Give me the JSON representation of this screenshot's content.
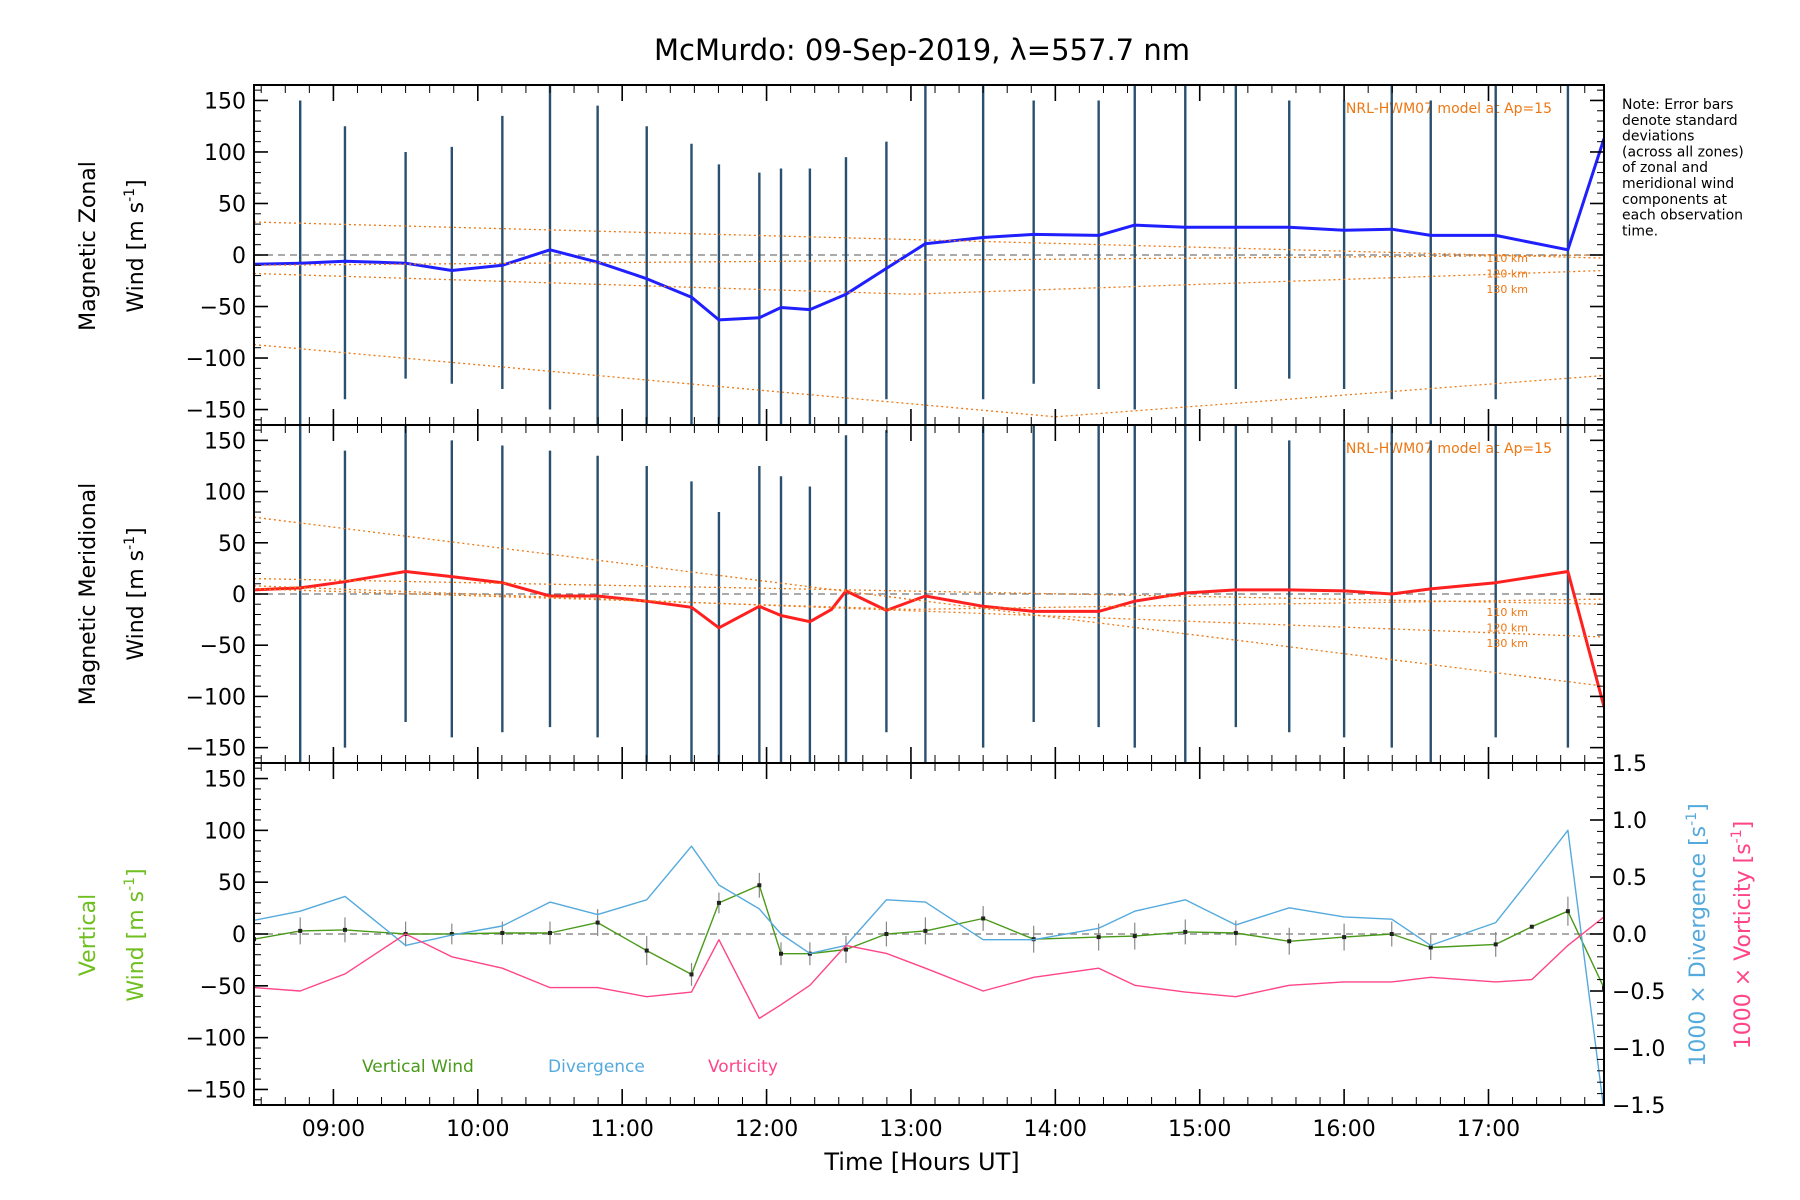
{
  "title": "McMurdo: 09-Sep-2019, λ=557.7 nm",
  "note_lines": [
    "Note: Error bars",
    "denote standard",
    "deviations",
    "(across all zones)",
    "of zonal and",
    "meridional wind",
    "components at",
    "each observation",
    "time."
  ],
  "colors": {
    "zonal": "#2020ff",
    "meridional": "#ff2020",
    "vertical": "#4a9a1a",
    "divergence": "#55aadd",
    "vorticity": "#ff4488",
    "model": "#ee7711",
    "errorbar": "#2a5070",
    "vertical_label": "#6fbf1f"
  },
  "chart_data": [
    {
      "type": "line",
      "panel": "zonal",
      "ylabel_line1": "Magnetic Zonal",
      "ylabel_line2": "Wind [m s",
      "ylabel_sup": "-1",
      "ylabel_close": "]",
      "xlim": [
        8.45,
        17.8
      ],
      "ylim": [
        -165,
        165
      ],
      "yticks": [
        150,
        100,
        50,
        0,
        -50,
        -100,
        -150
      ],
      "model_label": "NRL-HWM07 model at Ap=15",
      "altitude_labels": [
        "110 km",
        "120 km",
        "130 km"
      ],
      "series": [
        {
          "name": "Zonal wind",
          "x": [
            8.45,
            8.77,
            9.08,
            9.5,
            9.82,
            10.17,
            10.5,
            10.83,
            11.17,
            11.48,
            11.67,
            11.95,
            12.1,
            12.3,
            12.55,
            12.83,
            13.1,
            13.5,
            13.85,
            14.3,
            14.55,
            14.9,
            15.25,
            15.62,
            16.0,
            16.33,
            16.6,
            17.05,
            17.55,
            17.8
          ],
          "y": [
            -9,
            -8,
            -6,
            -8,
            -15,
            -10,
            5,
            -7,
            -23,
            -41,
            -63,
            -61,
            -51,
            -53,
            -38,
            -13,
            11,
            17,
            20,
            19,
            29,
            27,
            27,
            27,
            24,
            25,
            19,
            19,
            5,
            113
          ]
        },
        {
          "name": "Model 110 km",
          "style": "dotted",
          "x": [
            8.45,
            17.8
          ],
          "y": [
            -10,
            0
          ]
        },
        {
          "name": "Model 120 km",
          "style": "dotted",
          "x": [
            8.45,
            13.0,
            17.8
          ],
          "y": [
            -18,
            -38,
            -15
          ]
        },
        {
          "name": "Model 130 km",
          "style": "dotted",
          "x": [
            8.45,
            14.0,
            17.8
          ],
          "y": [
            -87,
            -157,
            -117
          ]
        },
        {
          "name": "Model upper",
          "style": "dotted",
          "x": [
            8.45,
            17.8
          ],
          "y": [
            32,
            -3
          ]
        }
      ],
      "errorbars": {
        "x": [
          8.77,
          9.08,
          9.5,
          9.82,
          10.17,
          10.5,
          10.83,
          11.17,
          11.48,
          11.67,
          11.95,
          12.1,
          12.3,
          12.55,
          12.83,
          13.1,
          13.5,
          13.85,
          14.3,
          14.55,
          14.9,
          15.25,
          15.62,
          16.0,
          16.33,
          16.6,
          17.05,
          17.55
        ],
        "low": [
          -165,
          -140,
          -120,
          -125,
          -130,
          -150,
          -165,
          -165,
          -165,
          -165,
          -165,
          -165,
          -165,
          -165,
          -140,
          -165,
          -140,
          -125,
          -130,
          -150,
          -165,
          -130,
          -120,
          -130,
          -140,
          -165,
          -140,
          -165
        ],
        "high": [
          150,
          125,
          100,
          105,
          135,
          165,
          145,
          125,
          108,
          88,
          80,
          84,
          84,
          95,
          110,
          165,
          165,
          150,
          150,
          165,
          165,
          165,
          150,
          150,
          165,
          150,
          165,
          165
        ]
      }
    },
    {
      "type": "line",
      "panel": "meridional",
      "ylabel_line1": "Magnetic Meridional",
      "ylabel_line2": "Wind [m s",
      "ylabel_sup": "-1",
      "ylabel_close": "]",
      "xlim": [
        8.45,
        17.8
      ],
      "ylim": [
        -165,
        165
      ],
      "yticks": [
        150,
        100,
        50,
        0,
        -50,
        -100,
        -150
      ],
      "model_label": "NRL-HWM07 model at Ap=15",
      "altitude_labels": [
        "110 km",
        "120 km",
        "130 km"
      ],
      "series": [
        {
          "name": "Meridional wind",
          "x": [
            8.45,
            8.77,
            9.08,
            9.5,
            9.82,
            10.17,
            10.5,
            10.83,
            11.17,
            11.48,
            11.67,
            11.95,
            12.1,
            12.3,
            12.45,
            12.55,
            12.83,
            13.1,
            13.5,
            13.85,
            14.3,
            14.55,
            14.9,
            15.25,
            15.62,
            16.0,
            16.33,
            16.6,
            17.05,
            17.55,
            17.8
          ],
          "y": [
            4,
            6,
            12,
            22,
            17,
            11,
            -2,
            -2,
            -7,
            -13,
            -33,
            -12,
            -21,
            -27,
            -15,
            3,
            -16,
            -2,
            -12,
            -17,
            -17,
            -7,
            1,
            4,
            4,
            3,
            0,
            5,
            11,
            22,
            -110
          ]
        },
        {
          "name": "Model 110 km",
          "style": "dotted",
          "x": [
            8.45,
            17.8
          ],
          "y": [
            15,
            -10
          ]
        },
        {
          "name": "Model 120 km",
          "style": "dotted",
          "x": [
            8.45,
            17.8
          ],
          "y": [
            8,
            -42
          ]
        },
        {
          "name": "Model 130 km",
          "style": "dotted",
          "x": [
            8.45,
            17.8
          ],
          "y": [
            75,
            -90
          ]
        },
        {
          "name": "Model mid",
          "style": "dotted",
          "x": [
            8.45,
            13.0,
            17.8
          ],
          "y": [
            5,
            -15,
            -5
          ]
        }
      ],
      "errorbars": {
        "x": [
          8.77,
          9.08,
          9.5,
          9.82,
          10.17,
          10.5,
          10.83,
          11.17,
          11.48,
          11.67,
          11.95,
          12.1,
          12.3,
          12.55,
          12.83,
          13.1,
          13.5,
          13.85,
          14.3,
          14.55,
          14.9,
          15.25,
          15.62,
          16.0,
          16.33,
          16.6,
          17.05,
          17.55
        ],
        "low": [
          -165,
          -150,
          -125,
          -140,
          -135,
          -130,
          -140,
          -165,
          -165,
          -165,
          -165,
          -165,
          -165,
          -165,
          -135,
          -165,
          -150,
          -125,
          -130,
          -150,
          -165,
          -130,
          -135,
          -140,
          -150,
          -165,
          -140,
          -150
        ],
        "high": [
          165,
          140,
          165,
          150,
          145,
          140,
          135,
          125,
          110,
          80,
          125,
          115,
          105,
          155,
          160,
          165,
          165,
          165,
          165,
          165,
          165,
          165,
          150,
          150,
          165,
          150,
          165,
          165
        ]
      }
    },
    {
      "type": "line",
      "panel": "vertical",
      "ylabel_line1": "Vertical",
      "ylabel_line2": "Wind [m s",
      "ylabel_sup": "-1",
      "ylabel_close": "]",
      "right_label_div": "1000 × Divergence [s",
      "right_label_vort": "1000 × Vorticity [s",
      "right_sup": "-1",
      "right_close": "]",
      "xlim": [
        8.45,
        17.8
      ],
      "ylim": [
        -165,
        165
      ],
      "ylim_right": [
        -1.5,
        1.5
      ],
      "yticks": [
        150,
        100,
        50,
        0,
        -50,
        -100,
        -150
      ],
      "yticks_right": [
        "1.5",
        "1.0",
        "0.5",
        "0.0",
        "−0.5",
        "−1.0",
        "−1.5"
      ],
      "yticks_right_values": [
        1.5,
        1.0,
        0.5,
        0.0,
        -0.5,
        -1.0,
        -1.5
      ],
      "xlabel": "Time [Hours UT]",
      "xticks": [
        "09:00",
        "10:00",
        "11:00",
        "12:00",
        "13:00",
        "14:00",
        "15:00",
        "16:00",
        "17:00"
      ],
      "xtick_values": [
        9,
        10,
        11,
        12,
        13,
        14,
        15,
        16,
        17
      ],
      "legend": [
        "Vertical Wind",
        "Divergence",
        "Vorticity"
      ],
      "series": [
        {
          "name": "Vertical Wind",
          "axis": "left",
          "x": [
            8.45,
            8.77,
            9.08,
            9.5,
            9.82,
            10.17,
            10.5,
            10.83,
            11.17,
            11.48,
            11.67,
            11.95,
            12.1,
            12.3,
            12.55,
            12.83,
            13.1,
            13.5,
            13.85,
            14.3,
            14.55,
            14.9,
            15.25,
            15.62,
            16.0,
            16.33,
            16.6,
            17.05,
            17.3,
            17.55,
            17.8
          ],
          "y": [
            -5,
            3,
            4,
            0,
            0,
            1,
            1,
            11,
            -16,
            -39,
            30,
            47,
            -19,
            -19,
            -15,
            0,
            3,
            15,
            -5,
            -3,
            -2,
            2,
            1,
            -7,
            -3,
            0,
            -13,
            -10,
            7,
            22,
            -52
          ]
        },
        {
          "name": "Divergence",
          "axis": "right",
          "x": [
            8.45,
            8.77,
            9.08,
            9.5,
            9.82,
            10.17,
            10.5,
            10.83,
            11.17,
            11.48,
            11.67,
            11.95,
            12.1,
            12.3,
            12.55,
            12.83,
            13.1,
            13.5,
            13.85,
            14.3,
            14.55,
            14.9,
            15.25,
            15.62,
            16.0,
            16.33,
            16.6,
            17.05,
            17.3,
            17.55,
            17.8
          ],
          "y": [
            0.12,
            0.2,
            0.33,
            -0.1,
            -0.01,
            0.07,
            0.28,
            0.17,
            0.3,
            0.77,
            0.43,
            0.22,
            0.0,
            -0.17,
            -0.1,
            0.3,
            0.28,
            -0.05,
            -0.05,
            0.05,
            0.2,
            0.3,
            0.08,
            0.23,
            0.15,
            0.13,
            -0.1,
            0.1,
            0.5,
            0.91,
            -1.55
          ]
        },
        {
          "name": "Vorticity",
          "axis": "right",
          "x": [
            8.45,
            8.77,
            9.08,
            9.5,
            9.82,
            10.17,
            10.5,
            10.83,
            11.17,
            11.48,
            11.67,
            11.95,
            12.1,
            12.3,
            12.55,
            12.83,
            13.1,
            13.5,
            13.85,
            14.3,
            14.55,
            14.9,
            15.25,
            15.62,
            16.0,
            16.33,
            16.6,
            17.05,
            17.3,
            17.55,
            17.8
          ],
          "y": [
            -0.47,
            -0.5,
            -0.35,
            0.0,
            -0.2,
            -0.3,
            -0.47,
            -0.47,
            -0.55,
            -0.51,
            -0.05,
            -0.74,
            -0.62,
            -0.45,
            -0.1,
            -0.17,
            -0.3,
            -0.5,
            -0.38,
            -0.3,
            -0.45,
            -0.51,
            -0.55,
            -0.45,
            -0.42,
            -0.42,
            -0.38,
            -0.42,
            -0.4,
            -0.1,
            0.15
          ]
        }
      ],
      "errorbars": {
        "x": [
          8.77,
          9.08,
          9.5,
          9.82,
          10.17,
          10.5,
          10.83,
          11.17,
          11.48,
          11.67,
          11.95,
          12.1,
          12.3,
          12.55,
          12.83,
          13.1,
          13.5,
          13.85,
          14.3,
          14.55,
          14.9,
          15.25,
          15.62,
          16.0,
          16.33,
          16.6,
          17.05,
          17.55
        ],
        "low": [
          -10,
          -8,
          -12,
          -10,
          -10,
          -10,
          -2,
          -30,
          -50,
          20,
          35,
          -30,
          -30,
          -28,
          -12,
          -10,
          3,
          -18,
          -16,
          -15,
          -10,
          -11,
          -20,
          -16,
          -12,
          -25,
          -22,
          8
        ],
        "high": [
          16,
          16,
          12,
          10,
          12,
          12,
          24,
          -2,
          -28,
          40,
          59,
          -8,
          -8,
          -2,
          12,
          16,
          27,
          8,
          10,
          11,
          14,
          13,
          6,
          10,
          12,
          -1,
          2,
          36
        ]
      }
    }
  ]
}
